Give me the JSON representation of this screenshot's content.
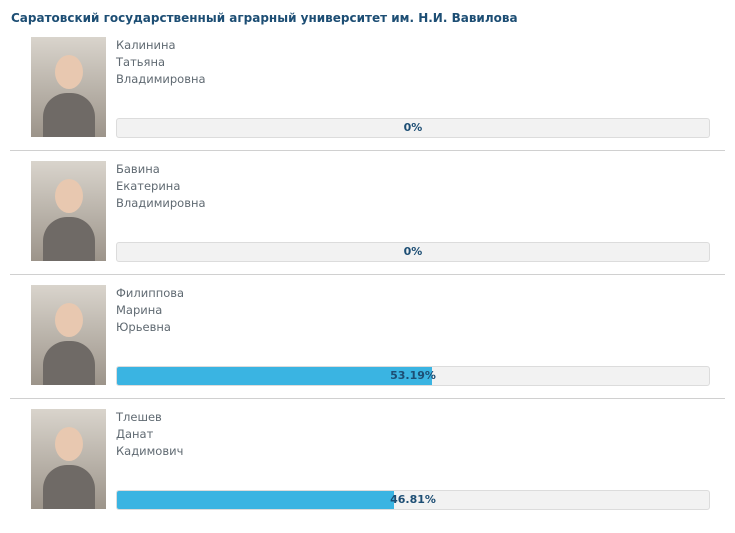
{
  "header": {
    "title": "Саратовский государственный аграрный университет им. Н.И. Вавилова"
  },
  "candidates": [
    {
      "name_lines": [
        "Калинина",
        "Татьяна",
        "Владимировна"
      ],
      "percent": 0,
      "percent_label": "0%"
    },
    {
      "name_lines": [
        "Бавина",
        "Екатерина",
        "Владимировна"
      ],
      "percent": 0,
      "percent_label": "0%"
    },
    {
      "name_lines": [
        "Филиппова",
        "Марина",
        "Юрьевна"
      ],
      "percent": 53.19,
      "percent_label": "53.19%"
    },
    {
      "name_lines": [
        "Тлешев",
        "Данат",
        "Кадимович"
      ],
      "percent": 46.81,
      "percent_label": "46.81%"
    }
  ]
}
